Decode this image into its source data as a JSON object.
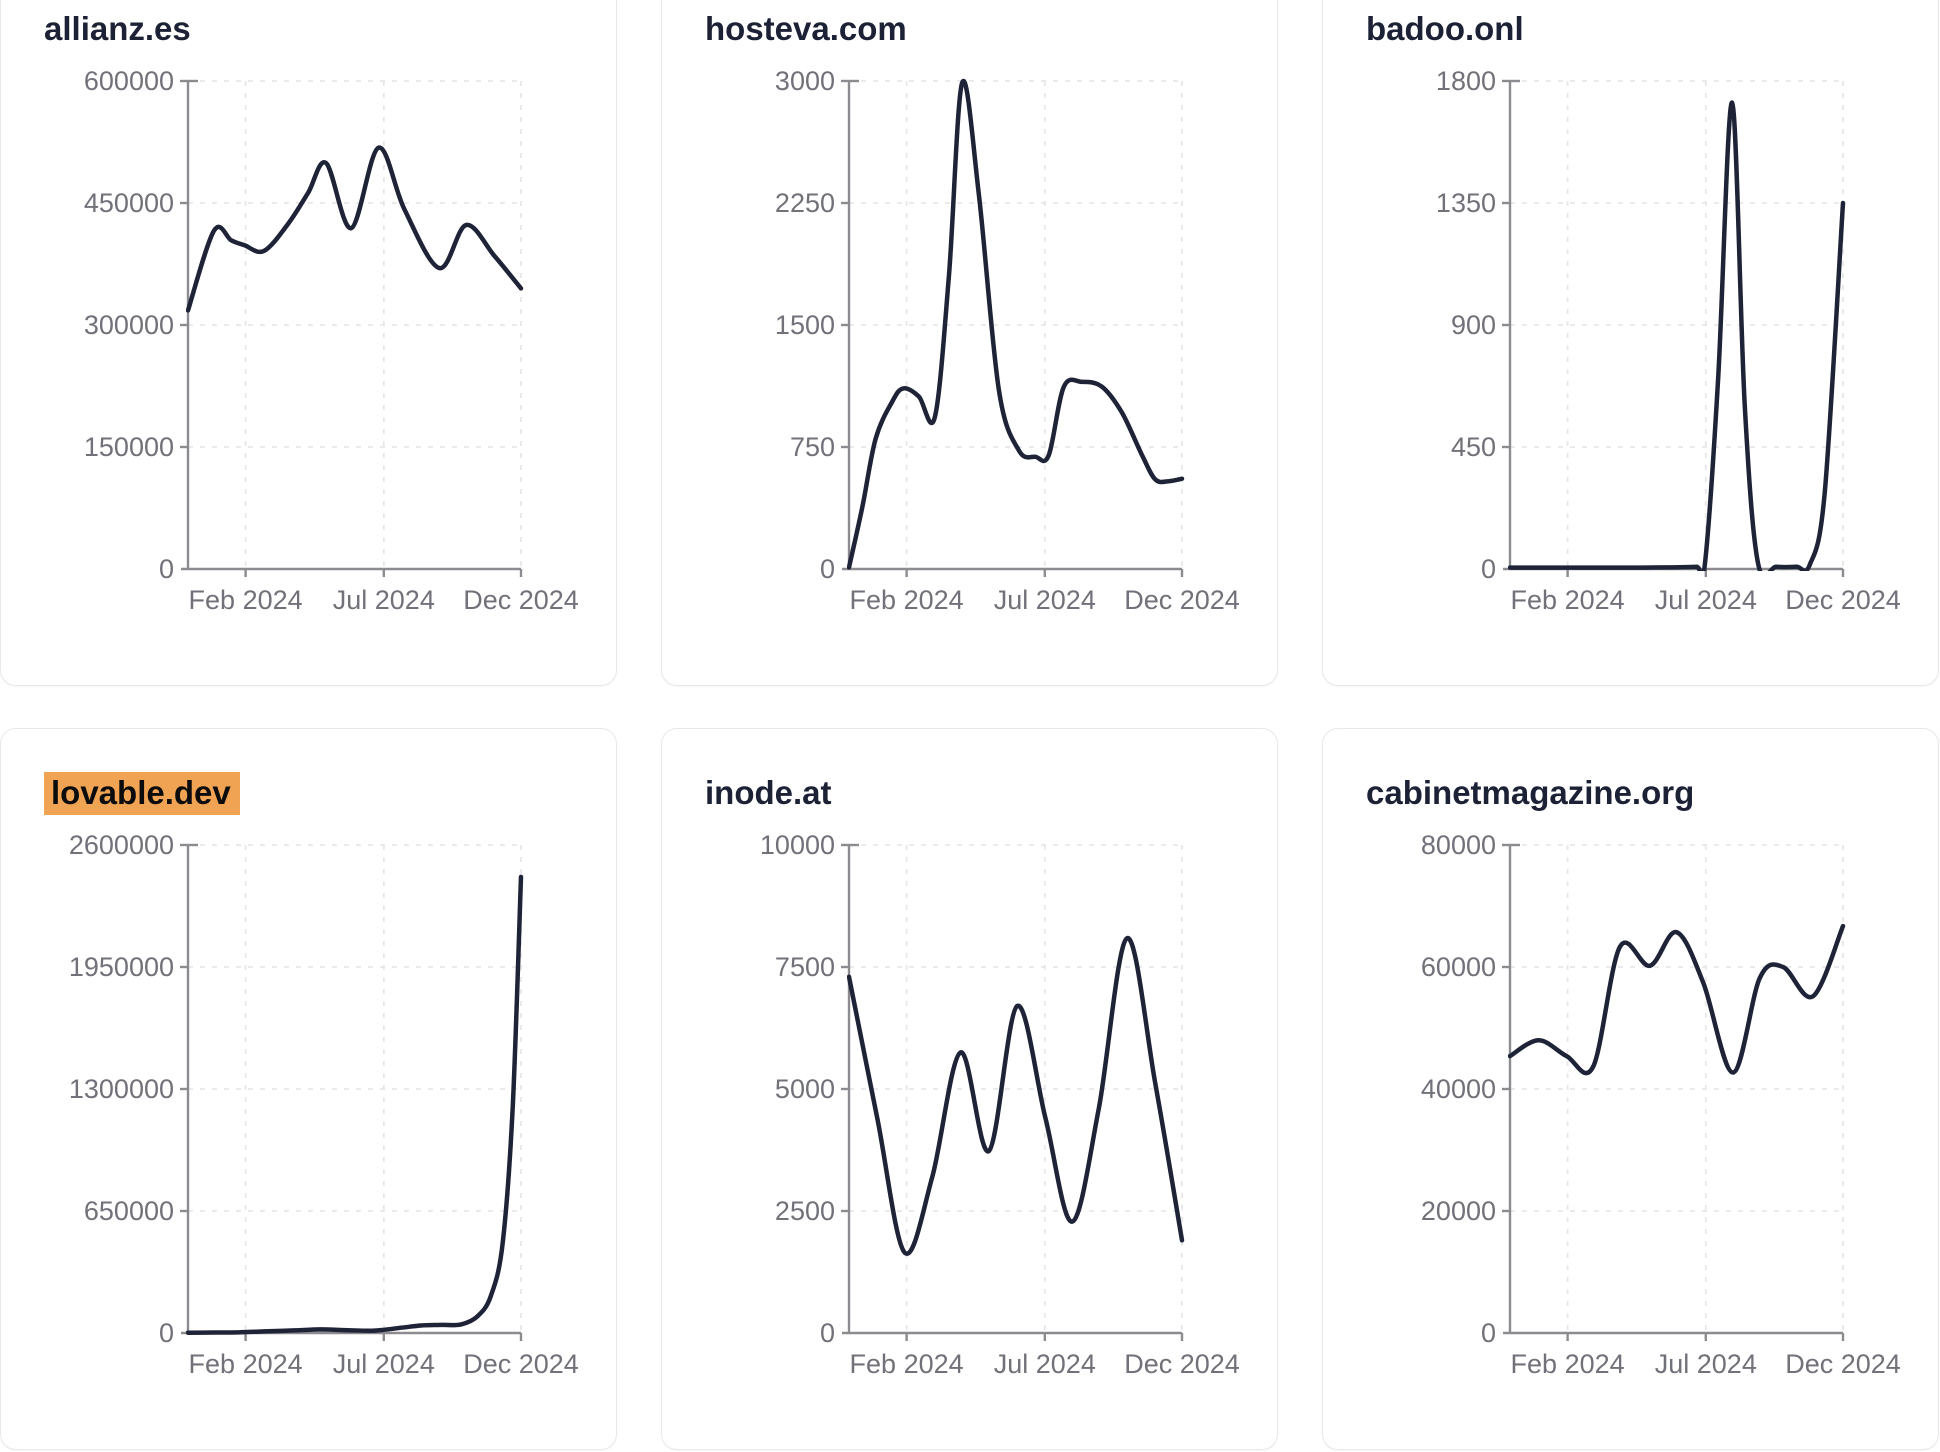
{
  "style": {
    "line_color": "#1e2337",
    "title_color": "#1c2135",
    "tick_label_color": "#71717a",
    "axis_color": "#8b8b90",
    "grid_color": "#e7e7ea",
    "card_border_color": "#e8e8ec",
    "card_background": "#ffffff",
    "page_background": "#ffffff",
    "highlight_color": "#f0a353",
    "highlight_text_color": "#0c0c0c"
  },
  "x_axis": {
    "tick_labels": [
      "Feb 2024",
      "Jul 2024",
      "Dec 2024"
    ],
    "tick_positions": [
      0.173,
      0.588,
      1.0
    ]
  },
  "chart_data": [
    {
      "type": "line",
      "title": "allianz.es",
      "title_highlighted": false,
      "xlabel": "",
      "ylabel": "",
      "grid": true,
      "legend": "none",
      "x_tick_labels": [
        "Feb 2024",
        "Jul 2024",
        "Dec 2024"
      ],
      "x_tick_positions": [
        0.173,
        0.588,
        1.0
      ],
      "x_note": "normalized time, ~Dec 2023 to Dec 2024",
      "y_ticks": [
        0,
        150000,
        300000,
        450000,
        600000
      ],
      "ylim": [
        0,
        600000
      ],
      "points": [
        [
          0,
          318000
        ],
        [
          0.078,
          416000
        ],
        [
          0.13,
          404000
        ],
        [
          0.17,
          398000
        ],
        [
          0.228,
          391000
        ],
        [
          0.3,
          424000
        ],
        [
          0.36,
          462000
        ],
        [
          0.415,
          499000
        ],
        [
          0.49,
          419000
        ],
        [
          0.572,
          518000
        ],
        [
          0.65,
          442000
        ],
        [
          0.755,
          370000
        ],
        [
          0.835,
          423000
        ],
        [
          0.92,
          385000
        ],
        [
          1.0,
          345000
        ]
      ]
    },
    {
      "type": "line",
      "title": "hosteva.com",
      "title_highlighted": false,
      "xlabel": "",
      "ylabel": "",
      "grid": true,
      "legend": "none",
      "x_tick_labels": [
        "Feb 2024",
        "Jul 2024",
        "Dec 2024"
      ],
      "x_tick_positions": [
        0.173,
        0.588,
        1.0
      ],
      "x_note": "normalized time, ~Dec 2023 to Dec 2024",
      "y_ticks": [
        0,
        750,
        1500,
        2250,
        3000
      ],
      "ylim": [
        0,
        3000
      ],
      "points": [
        [
          0,
          10
        ],
        [
          0.04,
          380
        ],
        [
          0.08,
          800
        ],
        [
          0.13,
          1030
        ],
        [
          0.163,
          1110
        ],
        [
          0.21,
          1060
        ],
        [
          0.258,
          935
        ],
        [
          0.3,
          1800
        ],
        [
          0.34,
          2990
        ],
        [
          0.39,
          2300
        ],
        [
          0.45,
          1100
        ],
        [
          0.51,
          730
        ],
        [
          0.56,
          690
        ],
        [
          0.6,
          700
        ],
        [
          0.645,
          1120
        ],
        [
          0.7,
          1150
        ],
        [
          0.76,
          1120
        ],
        [
          0.82,
          960
        ],
        [
          0.88,
          700
        ],
        [
          0.92,
          550
        ],
        [
          0.96,
          540
        ],
        [
          1.0,
          555
        ]
      ]
    },
    {
      "type": "line",
      "title": "badoo.onl",
      "title_highlighted": false,
      "xlabel": "",
      "ylabel": "",
      "grid": true,
      "legend": "none",
      "x_tick_labels": [
        "Feb 2024",
        "Jul 2024",
        "Dec 2024"
      ],
      "x_tick_positions": [
        0.173,
        0.588,
        1.0
      ],
      "x_note": "normalized time, ~Dec 2023 to Dec 2024",
      "y_ticks": [
        0,
        450,
        900,
        1350,
        1800
      ],
      "ylim": [
        0,
        1800
      ],
      "points": [
        [
          0,
          5
        ],
        [
          0.08,
          5
        ],
        [
          0.16,
          5
        ],
        [
          0.24,
          5
        ],
        [
          0.32,
          5
        ],
        [
          0.4,
          5
        ],
        [
          0.48,
          6
        ],
        [
          0.56,
          8
        ],
        [
          0.585,
          15
        ],
        [
          0.625,
          700
        ],
        [
          0.667,
          1720
        ],
        [
          0.705,
          600
        ],
        [
          0.745,
          20
        ],
        [
          0.8,
          8
        ],
        [
          0.86,
          8
        ],
        [
          0.9,
          15
        ],
        [
          0.945,
          280
        ],
        [
          1.0,
          1350
        ]
      ]
    },
    {
      "type": "line",
      "title": "lovable.dev",
      "title_highlighted": true,
      "xlabel": "",
      "ylabel": "",
      "grid": true,
      "legend": "none",
      "x_tick_labels": [
        "Feb 2024",
        "Jul 2024",
        "Dec 2024"
      ],
      "x_tick_positions": [
        0.173,
        0.588,
        1.0
      ],
      "x_note": "normalized time, ~Dec 2023 to Dec 2024",
      "y_ticks": [
        0,
        650000,
        1300000,
        1950000,
        2600000
      ],
      "ylim": [
        0,
        2600000
      ],
      "points": [
        [
          0,
          1500
        ],
        [
          0.08,
          2500
        ],
        [
          0.16,
          4000
        ],
        [
          0.24,
          9000
        ],
        [
          0.32,
          14000
        ],
        [
          0.4,
          19000
        ],
        [
          0.48,
          15000
        ],
        [
          0.56,
          13000
        ],
        [
          0.64,
          28000
        ],
        [
          0.7,
          40000
        ],
        [
          0.76,
          43000
        ],
        [
          0.82,
          46000
        ],
        [
          0.87,
          90000
        ],
        [
          0.91,
          200000
        ],
        [
          0.945,
          480000
        ],
        [
          0.975,
          1200000
        ],
        [
          1.0,
          2430000
        ]
      ]
    },
    {
      "type": "line",
      "title": "inode.at",
      "title_highlighted": false,
      "xlabel": "",
      "ylabel": "",
      "grid": true,
      "legend": "none",
      "x_tick_labels": [
        "Feb 2024",
        "Jul 2024",
        "Dec 2024"
      ],
      "x_tick_positions": [
        0.173,
        0.588,
        1.0
      ],
      "x_note": "normalized time, ~Dec 2023 to Dec 2024",
      "y_ticks": [
        0,
        2500,
        5000,
        7500,
        10000
      ],
      "ylim": [
        0,
        10000
      ],
      "points": [
        [
          0,
          7300
        ],
        [
          0.085,
          4400
        ],
        [
          0.167,
          1650
        ],
        [
          0.25,
          3200
        ],
        [
          0.335,
          5750
        ],
        [
          0.42,
          3730
        ],
        [
          0.505,
          6700
        ],
        [
          0.59,
          4400
        ],
        [
          0.67,
          2280
        ],
        [
          0.75,
          4600
        ],
        [
          0.835,
          8090
        ],
        [
          0.92,
          5100
        ],
        [
          1.0,
          1900
        ]
      ]
    },
    {
      "type": "line",
      "title": "cabinetmagazine.org",
      "title_highlighted": false,
      "xlabel": "",
      "ylabel": "",
      "grid": true,
      "legend": "none",
      "x_tick_labels": [
        "Feb 2024",
        "Jul 2024",
        "Dec 2024"
      ],
      "x_tick_positions": [
        0.173,
        0.588,
        1.0
      ],
      "x_note": "normalized time, ~Dec 2023 to Dec 2024",
      "y_ticks": [
        0,
        20000,
        40000,
        60000,
        80000
      ],
      "ylim": [
        0,
        80000
      ],
      "points": [
        [
          0,
          45400
        ],
        [
          0.086,
          48000
        ],
        [
          0.17,
          45400
        ],
        [
          0.25,
          43700
        ],
        [
          0.33,
          63300
        ],
        [
          0.42,
          60200
        ],
        [
          0.5,
          65700
        ],
        [
          0.58,
          57500
        ],
        [
          0.67,
          42700
        ],
        [
          0.75,
          58200
        ],
        [
          0.82,
          60000
        ],
        [
          0.91,
          55200
        ],
        [
          1.0,
          66700
        ]
      ]
    }
  ]
}
